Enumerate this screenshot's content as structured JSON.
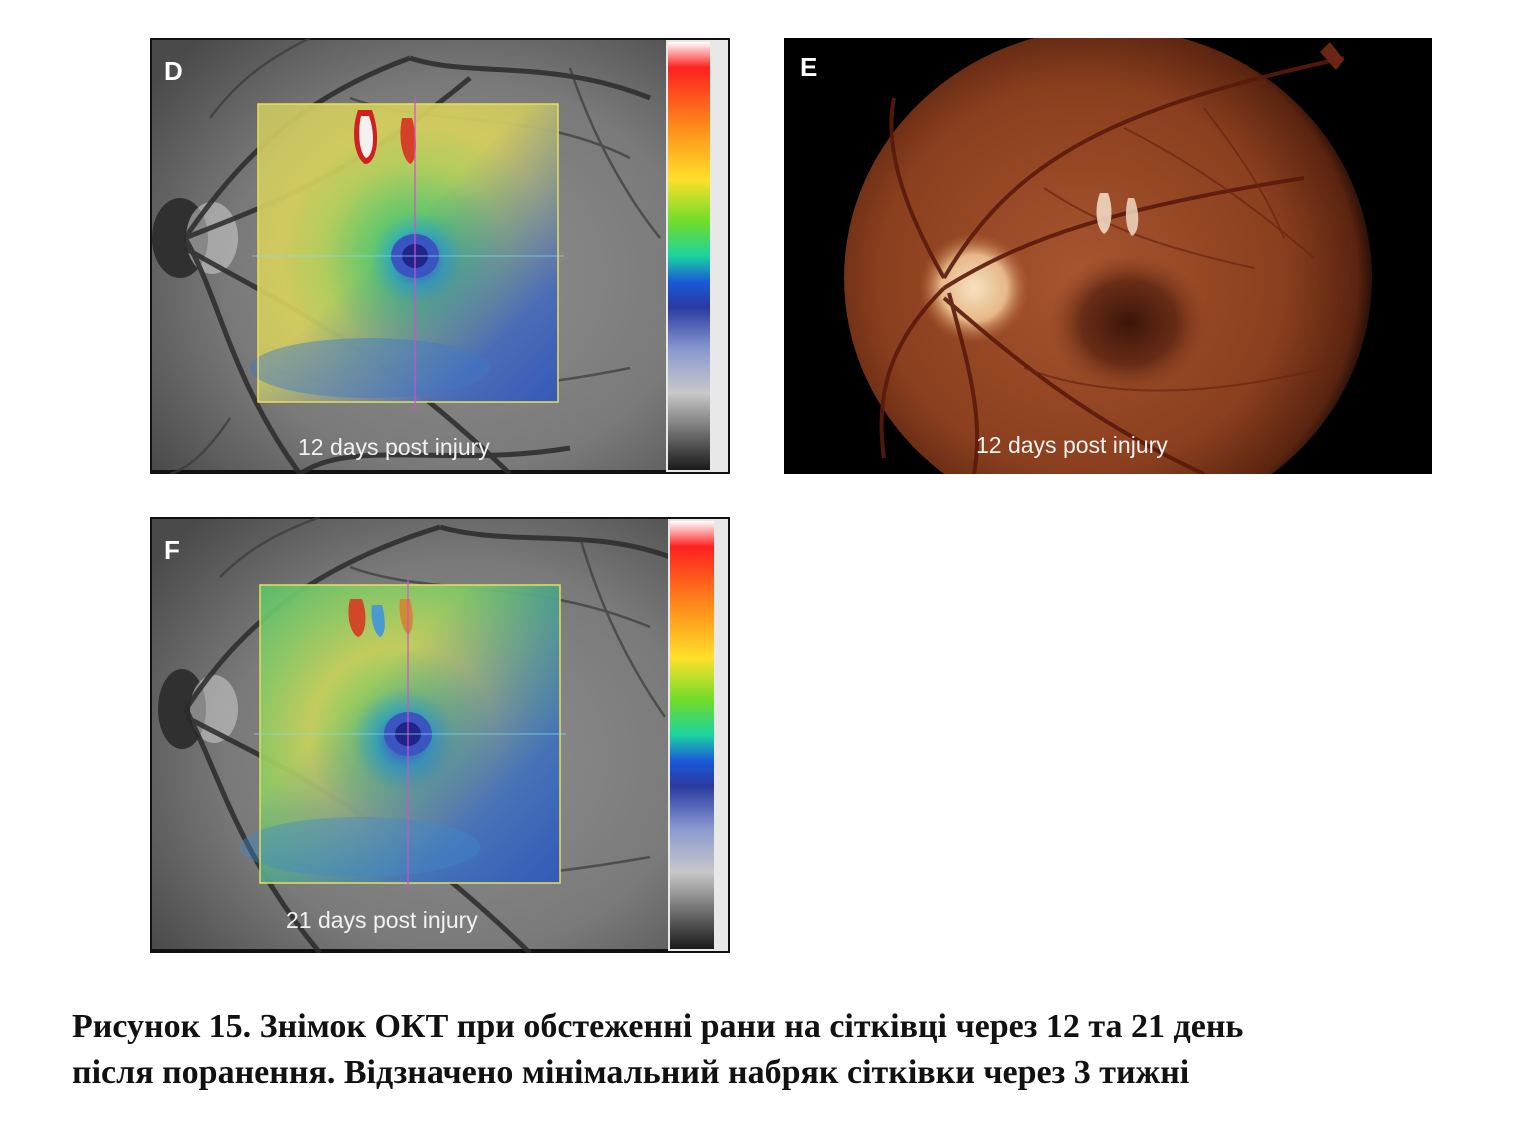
{
  "panels": [
    {
      "letter": "D",
      "caption": "12 days post injury",
      "type": "oct-thickness-map"
    },
    {
      "letter": "E",
      "caption": "12 days post injury",
      "type": "fundus-photograph"
    },
    {
      "letter": "F",
      "caption": "21 days post injury",
      "type": "oct-thickness-map"
    }
  ],
  "figure_caption": {
    "line1": "Рисунок 15. Знімок ОКТ при обстеженні рани на сітківці через 12 та 21 день",
    "line2": "після поранення. Відзначено мінімальний набряк сітківки через 3 тижні"
  },
  "colors": {
    "map_border": "#e6e05a",
    "crosshair": "#d050d0",
    "fundus_base": "#8a3f1e"
  }
}
